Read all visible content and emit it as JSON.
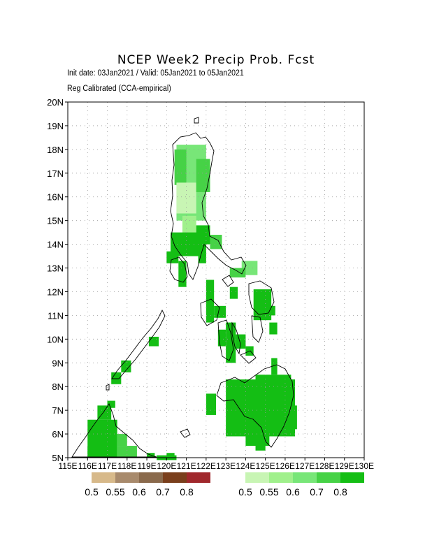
{
  "title": "NCEP Week2 Precip Prob. Fcst",
  "subtitle_line1": "Init date: 03Jan2021 / Valid: 05Jan2021 to 05Jan2021",
  "subtitle_line2": "Reg Calibrated (CCA-empirical)",
  "map": {
    "lon_range": [
      115,
      130
    ],
    "lat_range": [
      5,
      20
    ],
    "lat_labels": [
      "5N",
      "6N",
      "7N",
      "8N",
      "9N",
      "10N",
      "11N",
      "12N",
      "13N",
      "14N",
      "15N",
      "16N",
      "17N",
      "18N",
      "19N",
      "20N"
    ],
    "lon_labels": [
      "115E",
      "116E",
      "117E",
      "118E",
      "119E",
      "120E",
      "121E",
      "122E",
      "123E",
      "124E",
      "125E",
      "126E",
      "127E",
      "128E",
      "129E",
      "130E"
    ]
  },
  "legend_dry": {
    "colors": [
      "#d7b98a",
      "#a88a6c",
      "#8a6a4c",
      "#7a3f1c",
      "#a0282c"
    ],
    "labels": [
      "0.5",
      "0.55",
      "0.6",
      "0.7",
      "0.8"
    ]
  },
  "legend_wet": {
    "colors": [
      "#c8f5b4",
      "#a0f08c",
      "#78e678",
      "#46d246",
      "#14be14"
    ],
    "labels": [
      "0.5",
      "0.55",
      "0.6",
      "0.7",
      "0.8"
    ]
  },
  "colors": {
    "c1": "#c8f5b4",
    "c2": "#a0f08c",
    "c3": "#78e678",
    "c4": "#46d246",
    "c5": "#14be14"
  }
}
